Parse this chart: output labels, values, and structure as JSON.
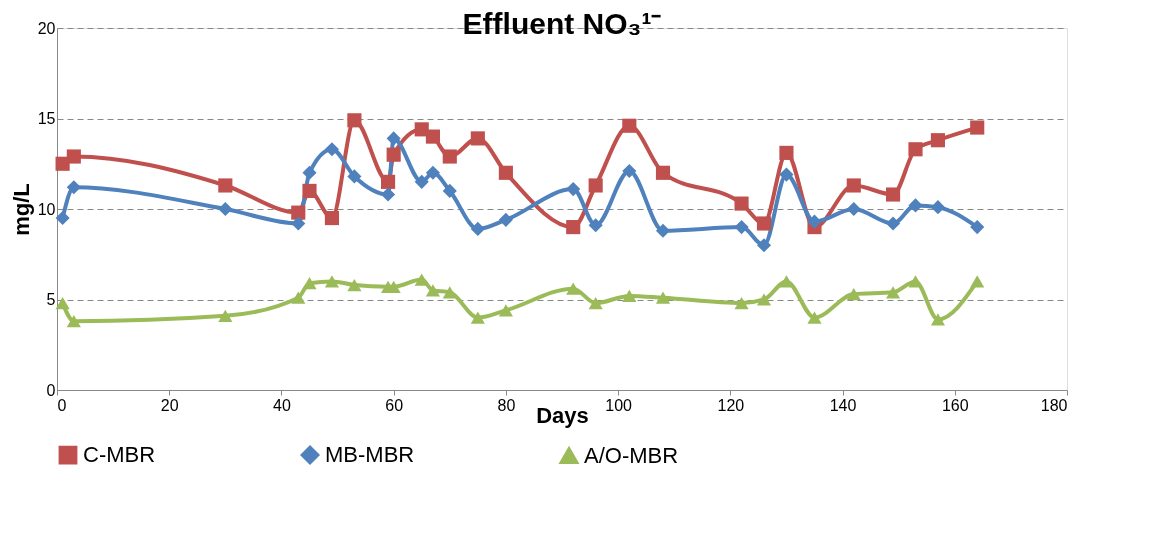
{
  "chart_data": {
    "type": "line",
    "title": "Effluent NO₃¹⁻",
    "xlabel": "Days",
    "ylabel": "mg/L",
    "xlim": [
      0,
      180
    ],
    "xticks": [
      0,
      20,
      40,
      60,
      80,
      100,
      120,
      140,
      160,
      180
    ],
    "ylim": [
      0,
      20
    ],
    "yticks": [
      0,
      5,
      10,
      15,
      20
    ],
    "grid": "y",
    "legend": "bottom",
    "x": [
      1,
      3,
      30,
      43,
      45,
      49,
      53,
      59,
      60,
      65,
      67,
      70,
      75,
      80,
      92,
      96,
      102,
      108,
      122,
      126,
      130,
      135,
      142,
      149,
      153,
      157,
      164
    ],
    "series": [
      {
        "name": "C-MBR",
        "color": "#c0504d",
        "marker": "square",
        "values": [
          12.5,
          12.9,
          11.3,
          9.8,
          11,
          9.5,
          14.9,
          11.5,
          13,
          14.4,
          14,
          12.9,
          13.9,
          12,
          9,
          11.3,
          14.6,
          12,
          10.3,
          9.2,
          13.1,
          9,
          11.3,
          10.8,
          13.3,
          13.8,
          14.5
        ]
      },
      {
        "name": "MB-MBR",
        "color": "#4f81bd",
        "marker": "diamond",
        "values": [
          9.5,
          11.2,
          10,
          9.2,
          12,
          13.3,
          11.8,
          10.8,
          13.9,
          11.5,
          12,
          11,
          8.9,
          9.4,
          11.1,
          9.1,
          12.1,
          8.8,
          9,
          8,
          11.9,
          9.3,
          10,
          9.2,
          10.2,
          10.1,
          9
        ]
      },
      {
        "name": "A/O-MBR",
        "color": "#9bbb59",
        "marker": "triangle",
        "values": [
          4.8,
          3.8,
          4.1,
          5.1,
          5.9,
          6,
          5.8,
          5.7,
          5.7,
          6.1,
          5.5,
          5.4,
          4,
          4.4,
          5.6,
          4.8,
          5.2,
          5.1,
          4.8,
          5,
          6,
          4,
          5.3,
          5.4,
          6,
          3.9,
          6
        ]
      }
    ]
  }
}
